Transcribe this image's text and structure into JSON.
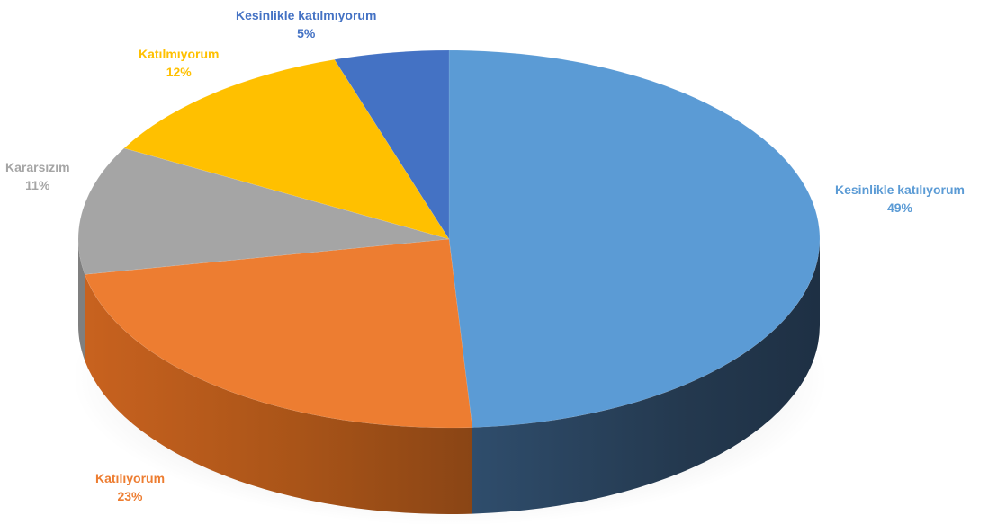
{
  "chart_data": {
    "type": "pie",
    "title": "",
    "slices": [
      {
        "label": "Kesinlikle katılıyorum",
        "percent_label": "49%",
        "value": 49,
        "color": "#5B9BD5"
      },
      {
        "label": "Katılıyorum",
        "percent_label": "23%",
        "value": 23,
        "color": "#ED7D31"
      },
      {
        "label": "Kararsızım",
        "percent_label": "11%",
        "value": 11,
        "color": "#A5A5A5"
      },
      {
        "label": "Katılmıyorum",
        "percent_label": "12%",
        "value": 12,
        "color": "#FFC000"
      },
      {
        "label": "Kesinlikle katılmıyorum",
        "percent_label": "5%",
        "value": 5,
        "color": "#4472C4"
      }
    ],
    "style": "3d-pie",
    "legend": "none"
  }
}
